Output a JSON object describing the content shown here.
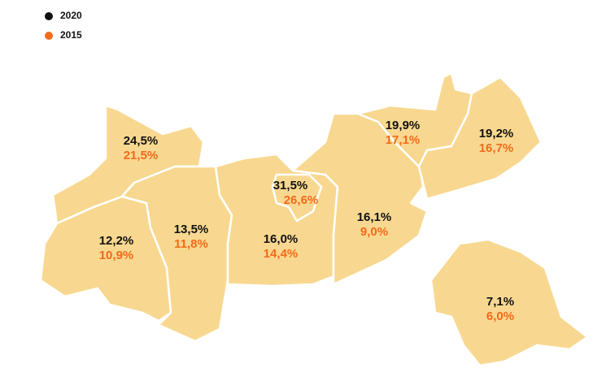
{
  "legend": [
    {
      "label": "2020",
      "color": "#111111"
    },
    {
      "label": "2015",
      "color": "#f26a1b"
    }
  ],
  "regions": [
    {
      "values": [
        "24,5%",
        "21,5%"
      ]
    },
    {
      "values": [
        "12,2%",
        "10,9%"
      ]
    },
    {
      "values": [
        "13,5%",
        "11,8%"
      ]
    },
    {
      "values": [
        "31,5%",
        "26,6%"
      ]
    },
    {
      "values": [
        "16,0%",
        "14,4%"
      ]
    },
    {
      "values": [
        "16,1%",
        "9,0%"
      ]
    },
    {
      "values": [
        "19,9%",
        "17,1%"
      ]
    },
    {
      "values": [
        "19,2%",
        "16,7%"
      ]
    },
    {
      "values": [
        "7,1%",
        "6,0%"
      ]
    }
  ]
}
